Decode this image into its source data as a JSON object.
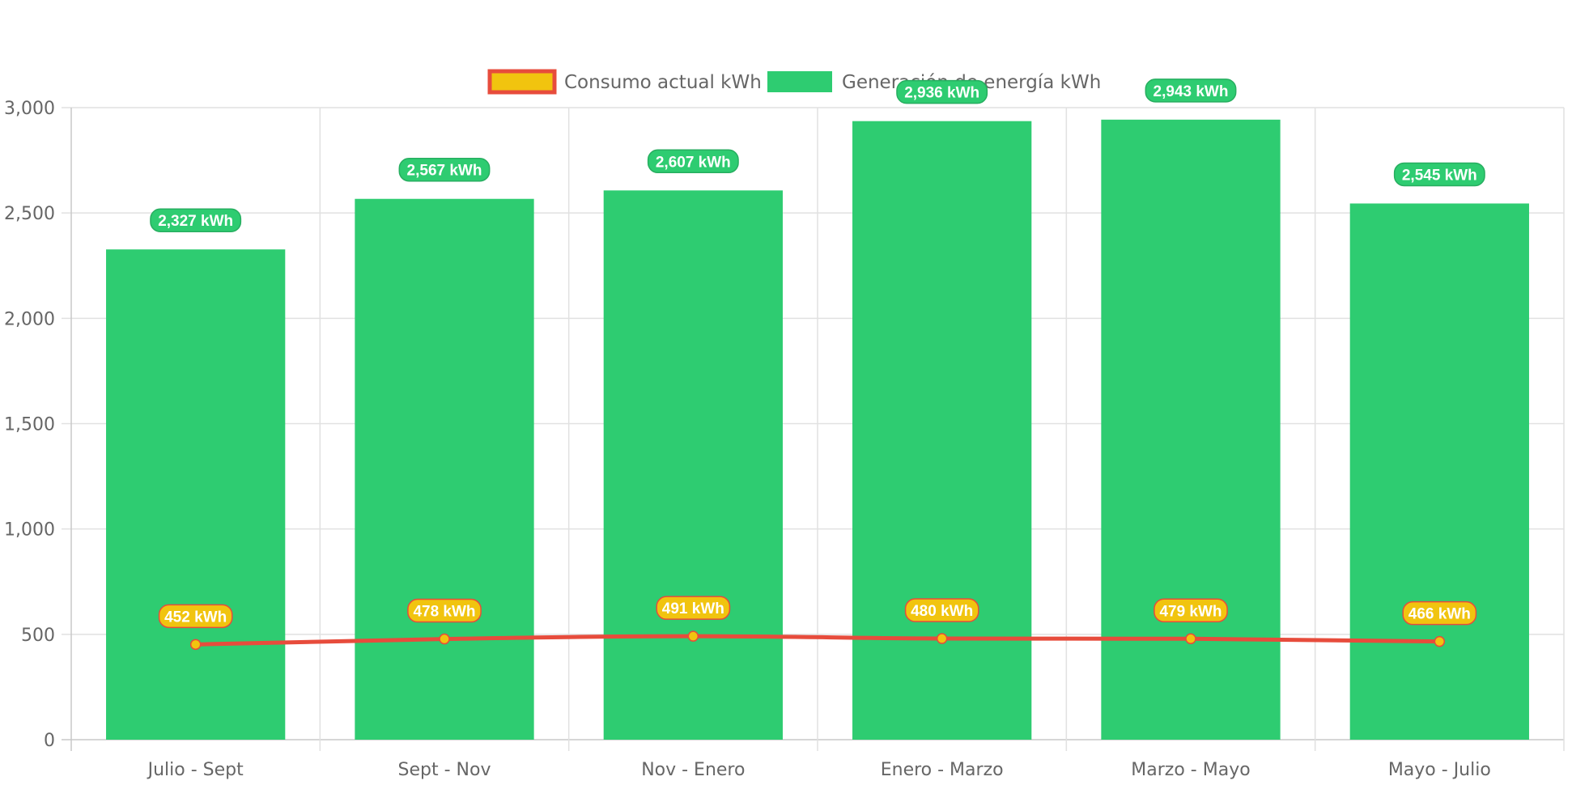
{
  "chart_data": {
    "type": "bar",
    "categories": [
      "Julio - Sept",
      "Sept - Nov",
      "Nov - Enero",
      "Enero - Marzo",
      "Marzo - Mayo",
      "Mayo - Julio"
    ],
    "series": [
      {
        "name": "Consumo actual kWh",
        "type": "line",
        "values": [
          452,
          478,
          491,
          480,
          479,
          466
        ],
        "labels": [
          "452 kWh",
          "478 kWh",
          "491 kWh",
          "480 kWh",
          "479 kWh",
          "466 kWh"
        ],
        "color": "#f1c40f",
        "border_color": "#e74c3c"
      },
      {
        "name": "Generación de energía kWh",
        "type": "bar",
        "values": [
          2327,
          2567,
          2607,
          2936,
          2943,
          2545
        ],
        "labels": [
          "2,327 kWh",
          "2,567 kWh",
          "2,607 kWh",
          "2,936 kWh",
          "2,943 kWh",
          "2,545 kWh"
        ],
        "color": "#2ecc71",
        "border_color": "#27ae60"
      }
    ],
    "y_ticks": [
      "0",
      "500",
      "1,000",
      "1,500",
      "2,000",
      "2,500",
      "3,000"
    ],
    "ylim": [
      0,
      3000
    ],
    "y_step": 500,
    "grid": true,
    "legend_position": "top"
  }
}
